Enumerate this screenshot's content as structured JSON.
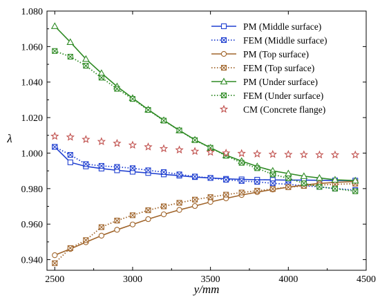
{
  "chart_data": {
    "type": "line",
    "xlabel": "y/mm",
    "ylabel": "λ",
    "xlim": [
      2450,
      4500
    ],
    "ylim": [
      0.934,
      1.08
    ],
    "xticks": [
      "2500",
      "3000",
      "3500",
      "4000",
      "4500"
    ],
    "yticks": [
      "0.940",
      "0.960",
      "0.980",
      "1.000",
      "1.020",
      "1.040",
      "1.060",
      "1.080"
    ],
    "grid": false,
    "legend_position": "top-right",
    "series": [
      {
        "name": "PM (Middle surface)",
        "color": "#1f3fd0",
        "line": "solid",
        "marker": "square",
        "x": [
          2500,
          2600,
          2700,
          2800,
          2900,
          3000,
          3100,
          3200,
          3300,
          3400,
          3500,
          3600,
          3700,
          3800,
          3900,
          4000,
          4100,
          4200,
          4300,
          4430
        ],
        "values": [
          1.0035,
          0.9948,
          0.9925,
          0.9913,
          0.9903,
          0.9895,
          0.9888,
          0.988,
          0.9873,
          0.9865,
          0.986,
          0.9855,
          0.9852,
          0.985,
          0.9849,
          0.9848,
          0.9848,
          0.9847,
          0.9846,
          0.9845
        ]
      },
      {
        "name": "FEM (Middle surface)",
        "color": "#1f3fd0",
        "line": "dotted",
        "marker": "x-square",
        "x": [
          2500,
          2600,
          2700,
          2800,
          2900,
          3000,
          3100,
          3200,
          3300,
          3400,
          3500,
          3600,
          3700,
          3800,
          3900,
          4000,
          4100,
          4200,
          4300,
          4430
        ],
        "values": [
          1.0035,
          0.999,
          0.9938,
          0.9928,
          0.9922,
          0.9915,
          0.9903,
          0.9893,
          0.988,
          0.9868,
          0.986,
          0.985,
          0.9843,
          0.9838,
          0.983,
          0.9824,
          0.9816,
          0.981,
          0.98,
          0.9792
        ]
      },
      {
        "name": "PM (Top surface)",
        "color": "#a0642a",
        "line": "solid",
        "marker": "circle",
        "x": [
          2500,
          2600,
          2700,
          2800,
          2900,
          3000,
          3100,
          3200,
          3300,
          3400,
          3500,
          3600,
          3700,
          3800,
          3900,
          4000,
          4100,
          4200,
          4300,
          4430
        ],
        "values": [
          0.9425,
          0.946,
          0.9498,
          0.9535,
          0.9568,
          0.9598,
          0.9628,
          0.9655,
          0.968,
          0.9702,
          0.9725,
          0.9745,
          0.9764,
          0.978,
          0.9795,
          0.9808,
          0.982,
          0.9829,
          0.9835,
          0.984
        ]
      },
      {
        "name": "FEM (Top surface)",
        "color": "#a0642a",
        "line": "dotted",
        "marker": "x-square",
        "x": [
          2500,
          2600,
          2700,
          2800,
          2900,
          3000,
          3100,
          3200,
          3300,
          3400,
          3500,
          3600,
          3700,
          3800,
          3900,
          4000,
          4100,
          4200,
          4300,
          4430
        ],
        "values": [
          0.938,
          0.9465,
          0.951,
          0.9583,
          0.962,
          0.965,
          0.9678,
          0.97,
          0.972,
          0.9738,
          0.9752,
          0.9766,
          0.9778,
          0.9788,
          0.9798,
          0.9808,
          0.9815,
          0.982,
          0.9824,
          0.9828
        ]
      },
      {
        "name": "PM (Under surface)",
        "color": "#2e8a24",
        "line": "solid",
        "marker": "triangle",
        "x": [
          2500,
          2600,
          2700,
          2800,
          2900,
          3000,
          3100,
          3200,
          3300,
          3400,
          3500,
          3600,
          3700,
          3800,
          3900,
          4000,
          4100,
          4200,
          4300,
          4430
        ],
        "values": [
          1.0715,
          1.0625,
          1.053,
          1.045,
          1.0375,
          1.031,
          1.0245,
          1.0185,
          1.0128,
          1.0075,
          1.003,
          0.9988,
          0.9955,
          0.9925,
          0.99,
          0.9885,
          0.987,
          0.986,
          0.985,
          0.9845
        ]
      },
      {
        "name": "FEM (Under surface)",
        "color": "#2e8a24",
        "line": "dotted",
        "marker": "x-square",
        "x": [
          2500,
          2600,
          2700,
          2800,
          2900,
          3000,
          3100,
          3200,
          3300,
          3400,
          3500,
          3600,
          3700,
          3800,
          3900,
          4000,
          4100,
          4200,
          4300,
          4430
        ],
        "values": [
          1.0575,
          1.0543,
          1.0492,
          1.0425,
          1.0362,
          1.0305,
          1.0243,
          1.0183,
          1.0128,
          1.0073,
          1.003,
          0.9985,
          0.9945,
          0.9915,
          0.988,
          0.9858,
          0.983,
          0.981,
          0.98,
          0.9785
        ]
      },
      {
        "name": "CM (Concrete flange)",
        "color": "#c0504d",
        "line": "none",
        "marker": "star",
        "x": [
          2500,
          2600,
          2700,
          2800,
          2900,
          3000,
          3100,
          3200,
          3300,
          3400,
          3500,
          3600,
          3700,
          3800,
          3900,
          4000,
          4100,
          4200,
          4300,
          4430
        ],
        "values": [
          1.0095,
          1.009,
          1.0077,
          1.0065,
          1.0055,
          1.0045,
          1.0035,
          1.0025,
          1.0018,
          1.001,
          1.0005,
          1.0,
          0.9998,
          0.9995,
          0.9993,
          0.9992,
          0.9991,
          0.999,
          0.999,
          0.999
        ]
      }
    ]
  }
}
